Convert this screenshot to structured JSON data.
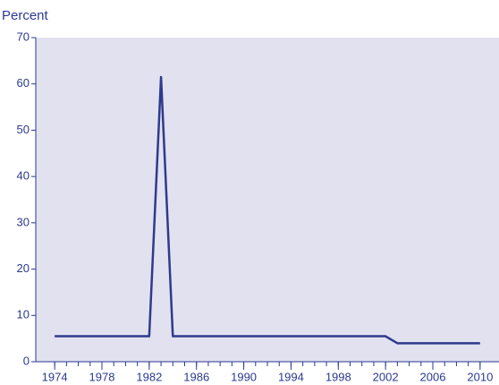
{
  "chart_data": {
    "type": "line",
    "y_label": "Percent",
    "x": [
      1974,
      1975,
      1976,
      1977,
      1978,
      1979,
      1980,
      1981,
      1982,
      1983,
      1984,
      1985,
      1986,
      1987,
      1988,
      1989,
      1990,
      1991,
      1992,
      1993,
      1994,
      1995,
      1996,
      1997,
      1998,
      1999,
      2000,
      2001,
      2002,
      2003,
      2004,
      2005,
      2006,
      2007,
      2008,
      2009,
      2010
    ],
    "series": [
      {
        "color": "#2e3a8c",
        "values": [
          5.5,
          5.5,
          5.5,
          5.5,
          5.5,
          5.5,
          5.5,
          5.5,
          5.5,
          61.5,
          5.5,
          5.5,
          5.5,
          5.5,
          5.5,
          5.5,
          5.5,
          5.5,
          5.5,
          5.5,
          5.5,
          5.5,
          5.5,
          5.5,
          5.5,
          5.5,
          5.5,
          5.5,
          5.5,
          4,
          4,
          4,
          4,
          4,
          4,
          4,
          4
        ]
      }
    ],
    "xlim": [
      1972.4,
      2011.6
    ],
    "xticks": [
      1974,
      1978,
      1982,
      1986,
      1990,
      1994,
      1998,
      2002,
      2006,
      2010
    ],
    "ylim": [
      0,
      70
    ],
    "yticks": [
      0,
      10,
      20,
      30,
      40,
      50,
      60,
      70
    ],
    "background": "#e1e1f0"
  }
}
